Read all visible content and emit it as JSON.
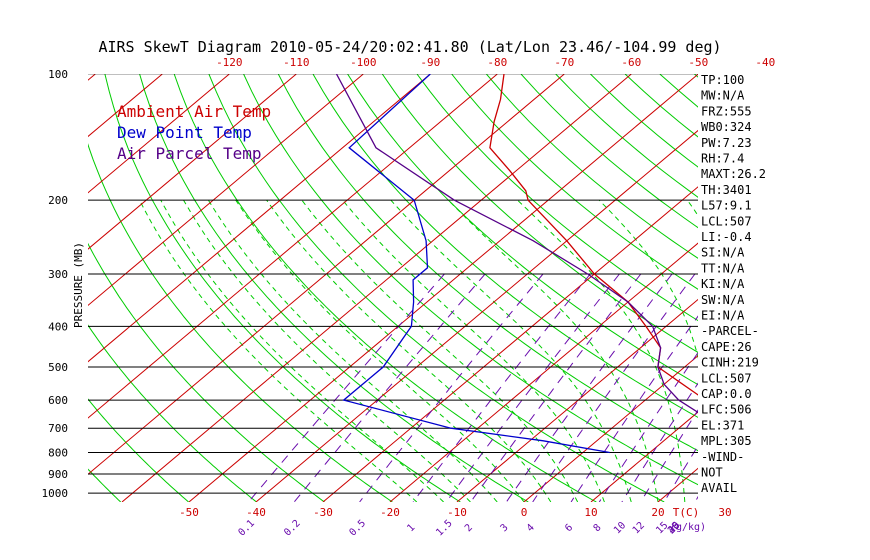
{
  "title": "AIRS SkewT Diagram 2010-05-24/20:02:41.80 (Lat/Lon 23.46/-104.99 deg)",
  "colors": {
    "ambient": "#cc0000",
    "dewpoint": "#0000cc",
    "parcel": "#550088",
    "isotherm": "#cc0000",
    "dry_adiabat": "#00cc00",
    "moist_adiabat": "#00cc00",
    "mixing_ratio": "#6a0dad",
    "isobar": "#000000"
  },
  "legend": [
    "Ambient Air Temp",
    "Dew Point Temp",
    "Air Parcel Temp"
  ],
  "top_axis_labels": [
    "-120",
    "-110",
    "-100",
    "-90",
    "-80",
    "-70",
    "-60",
    "-50",
    "-40"
  ],
  "bottom_axis_labels": [
    "-50",
    "-40",
    "-30",
    "-20",
    "-10",
    "0",
    "10",
    "20",
    "30",
    "T(C)"
  ],
  "mixing_ratio_labels": [
    "0.1",
    "0.2",
    "0.5",
    "1",
    "1.5",
    "2",
    "3",
    "4",
    "6",
    "8",
    "10",
    "12",
    "15",
    "20",
    "25",
    "30",
    "40",
    "(g/kg)"
  ],
  "pressure_axis_label": "PRESSURE (MB)",
  "pressure_tick_labels": [
    "100",
    "200",
    "300",
    "400",
    "500",
    "600",
    "700",
    "800",
    "900",
    "1000"
  ],
  "side_panel": [
    "TP:100",
    "MW:N/A",
    "FRZ:555",
    "WB0:324",
    "PW:7.23",
    "RH:7.4",
    "MAXT:26.2",
    "TH:3401",
    "L57:9.1",
    "LCL:507",
    "LI:-0.4",
    "SI:N/A",
    "TT:N/A",
    "KI:N/A",
    "SW:N/A",
    "EI:N/A",
    "-PARCEL-",
    "CAPE:26",
    "CINH:219",
    "LCL:507",
    "CAP:0.0",
    "LFC:506",
    "EL:371",
    "MPL:305",
    "-WIND-",
    "NOT",
    "AVAIL"
  ],
  "chart_data": {
    "type": "line",
    "title": "AIRS SkewT Diagram 2010-05-24/20:02:41.80 (Lat/Lon 23.46/-104.99 deg)",
    "ylabel": "PRESSURE (MB)",
    "xlabel": "T(C)",
    "y_scale": "log (inverted)",
    "ylim": [
      1000,
      100
    ],
    "pressure_levels": [
      100,
      200,
      300,
      400,
      500,
      600,
      700,
      800,
      900,
      1000
    ],
    "grid": "isobars, skewed isotherms, dry adiabats, moist adiabats, mixing-ratio lines",
    "legend_placement": "top-left",
    "series": [
      {
        "name": "Ambient Air Temp",
        "color": "#cc0000",
        "points": [
          [
            100,
            -79
          ],
          [
            115,
            -75
          ],
          [
            130,
            -72
          ],
          [
            150,
            -68
          ],
          [
            170,
            -61
          ],
          [
            190,
            -55
          ],
          [
            200,
            -53
          ],
          [
            250,
            -40
          ],
          [
            300,
            -30
          ],
          [
            350,
            -20
          ],
          [
            400,
            -13
          ],
          [
            450,
            -7
          ],
          [
            500,
            -4
          ],
          [
            600,
            9
          ],
          [
            650,
            15
          ],
          [
            700,
            20
          ],
          [
            750,
            24
          ],
          [
            800,
            26.2
          ]
        ]
      },
      {
        "name": "Dew Point Temp",
        "color": "#0000cc",
        "points": [
          [
            100,
            -90
          ],
          [
            150,
            -89
          ],
          [
            200,
            -70
          ],
          [
            250,
            -61
          ],
          [
            290,
            -56
          ],
          [
            310,
            -56
          ],
          [
            350,
            -52
          ],
          [
            400,
            -48
          ],
          [
            500,
            -45
          ],
          [
            600,
            -45
          ],
          [
            700,
            -24
          ],
          [
            750,
            -8
          ],
          [
            800,
            4
          ]
        ]
      },
      {
        "name": "Air Parcel Temp",
        "color": "#550088",
        "points": [
          [
            100,
            -104
          ],
          [
            150,
            -85
          ],
          [
            200,
            -64
          ],
          [
            250,
            -45
          ],
          [
            300,
            -31
          ],
          [
            350,
            -20
          ],
          [
            400,
            -12
          ],
          [
            450,
            -7
          ],
          [
            500,
            -4
          ],
          [
            550,
            0
          ],
          [
            600,
            5
          ],
          [
            650,
            11
          ],
          [
            700,
            16
          ],
          [
            750,
            22
          ],
          [
            800,
            26.2
          ]
        ]
      }
    ]
  }
}
